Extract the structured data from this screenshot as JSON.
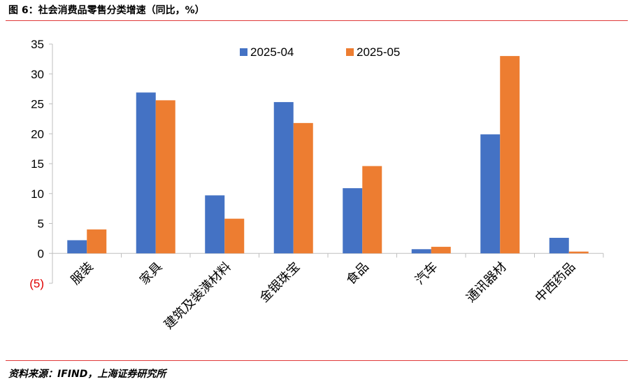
{
  "title": "图 6：社会消费品零售分类增速（同比，%）",
  "source": "资料来源：IFIND，上海证券研究所",
  "colors": {
    "series1": "#4472C4",
    "series2": "#ED7D31",
    "rule": "#E03A3A",
    "negative_label": "#E00000"
  },
  "chart_data": {
    "type": "bar",
    "title": "图 6：社会消费品零售分类增速（同比，%）",
    "xlabel": "",
    "ylabel": "",
    "categories": [
      "服装",
      "家具",
      "建筑及装潢材料",
      "金银珠宝",
      "食品",
      "汽车",
      "通讯器材",
      "中西药品"
    ],
    "series": [
      {
        "name": "2025-04",
        "values": [
          2.2,
          26.9,
          9.7,
          25.3,
          10.9,
          0.7,
          19.9,
          2.6
        ]
      },
      {
        "name": "2025-05",
        "values": [
          4.0,
          25.6,
          5.8,
          21.8,
          14.6,
          1.1,
          33.0,
          0.3
        ]
      }
    ],
    "ylim": [
      -5,
      35
    ],
    "yticks": [
      35,
      30,
      25,
      20,
      15,
      10,
      5,
      0,
      -5
    ],
    "ytick_labels": [
      "35",
      "30",
      "25",
      "20",
      "15",
      "10",
      "5",
      "0",
      "(5)"
    ],
    "grid": false,
    "legend": "top-center"
  }
}
